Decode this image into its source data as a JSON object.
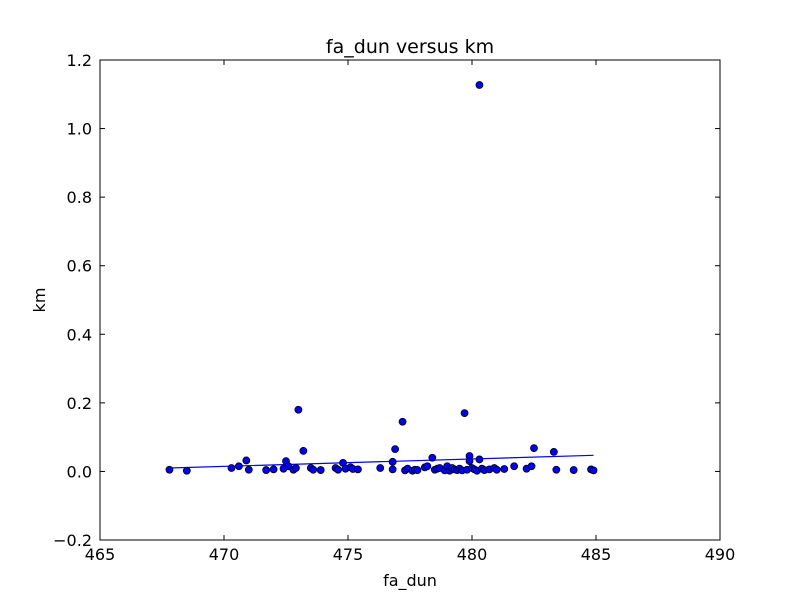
{
  "chart_data": {
    "type": "scatter",
    "title": "fa_dun versus km",
    "xlabel": "fa_dun",
    "ylabel": "km",
    "xlim": [
      465,
      490
    ],
    "ylim": [
      -0.2,
      1.2
    ],
    "xticks": [
      465,
      470,
      475,
      480,
      485,
      490
    ],
    "xtick_labels": [
      "465",
      "470",
      "475",
      "480",
      "485",
      "490"
    ],
    "yticks": [
      -0.2,
      0.0,
      0.2,
      0.4,
      0.6,
      0.8,
      1.0,
      1.2
    ],
    "ytick_labels": [
      "−0.2",
      "0.0",
      "0.2",
      "0.4",
      "0.6",
      "0.8",
      "1.0",
      "1.2"
    ],
    "grid": false,
    "marker_color": "#0000ff",
    "line_color": "#0000ff",
    "points": [
      {
        "x": 467.8,
        "y": 0.005
      },
      {
        "x": 468.5,
        "y": 0.002
      },
      {
        "x": 470.3,
        "y": 0.01
      },
      {
        "x": 470.6,
        "y": 0.015
      },
      {
        "x": 470.9,
        "y": 0.032
      },
      {
        "x": 471.0,
        "y": 0.005
      },
      {
        "x": 471.7,
        "y": 0.004
      },
      {
        "x": 472.0,
        "y": 0.006
      },
      {
        "x": 472.4,
        "y": 0.008
      },
      {
        "x": 472.5,
        "y": 0.03
      },
      {
        "x": 472.6,
        "y": 0.015
      },
      {
        "x": 472.8,
        "y": 0.005
      },
      {
        "x": 472.9,
        "y": 0.01
      },
      {
        "x": 473.0,
        "y": 0.18
      },
      {
        "x": 473.2,
        "y": 0.06
      },
      {
        "x": 473.5,
        "y": 0.01
      },
      {
        "x": 473.6,
        "y": 0.005
      },
      {
        "x": 473.9,
        "y": 0.004
      },
      {
        "x": 474.5,
        "y": 0.01
      },
      {
        "x": 474.6,
        "y": 0.005
      },
      {
        "x": 474.8,
        "y": 0.025
      },
      {
        "x": 474.9,
        "y": 0.008
      },
      {
        "x": 475.1,
        "y": 0.012
      },
      {
        "x": 475.2,
        "y": 0.007
      },
      {
        "x": 475.4,
        "y": 0.006
      },
      {
        "x": 476.3,
        "y": 0.01
      },
      {
        "x": 476.8,
        "y": 0.028
      },
      {
        "x": 476.9,
        "y": 0.065
      },
      {
        "x": 476.8,
        "y": 0.006
      },
      {
        "x": 477.2,
        "y": 0.145
      },
      {
        "x": 477.3,
        "y": 0.003
      },
      {
        "x": 477.4,
        "y": 0.008
      },
      {
        "x": 477.6,
        "y": 0.002
      },
      {
        "x": 477.7,
        "y": 0.005
      },
      {
        "x": 477.8,
        "y": 0.004
      },
      {
        "x": 478.1,
        "y": 0.012
      },
      {
        "x": 478.2,
        "y": 0.015
      },
      {
        "x": 478.4,
        "y": 0.04
      },
      {
        "x": 478.5,
        "y": 0.005
      },
      {
        "x": 478.6,
        "y": 0.008
      },
      {
        "x": 478.7,
        "y": 0.01
      },
      {
        "x": 478.9,
        "y": 0.003
      },
      {
        "x": 479.0,
        "y": 0.015
      },
      {
        "x": 479.1,
        "y": 0.002
      },
      {
        "x": 479.2,
        "y": 0.01
      },
      {
        "x": 479.3,
        "y": 0.006
      },
      {
        "x": 479.4,
        "y": 0.004
      },
      {
        "x": 479.5,
        "y": 0.008
      },
      {
        "x": 479.6,
        "y": 0.003
      },
      {
        "x": 479.7,
        "y": 0.17
      },
      {
        "x": 479.8,
        "y": 0.005
      },
      {
        "x": 479.9,
        "y": 0.045
      },
      {
        "x": 479.9,
        "y": 0.03
      },
      {
        "x": 480.0,
        "y": 0.01
      },
      {
        "x": 480.1,
        "y": 0.006
      },
      {
        "x": 480.2,
        "y": 0.002
      },
      {
        "x": 480.3,
        "y": 1.127
      },
      {
        "x": 480.3,
        "y": 0.035
      },
      {
        "x": 480.4,
        "y": 0.008
      },
      {
        "x": 480.5,
        "y": 0.004
      },
      {
        "x": 480.7,
        "y": 0.006
      },
      {
        "x": 480.9,
        "y": 0.01
      },
      {
        "x": 481.0,
        "y": 0.005
      },
      {
        "x": 481.3,
        "y": 0.007
      },
      {
        "x": 481.7,
        "y": 0.015
      },
      {
        "x": 482.2,
        "y": 0.008
      },
      {
        "x": 482.4,
        "y": 0.015
      },
      {
        "x": 482.5,
        "y": 0.068
      },
      {
        "x": 483.3,
        "y": 0.057
      },
      {
        "x": 483.4,
        "y": 0.005
      },
      {
        "x": 484.1,
        "y": 0.004
      },
      {
        "x": 484.8,
        "y": 0.006
      },
      {
        "x": 484.9,
        "y": 0.003
      }
    ],
    "trend_line": {
      "x": [
        467.8,
        484.9
      ],
      "y": [
        0.01,
        0.047
      ]
    }
  }
}
